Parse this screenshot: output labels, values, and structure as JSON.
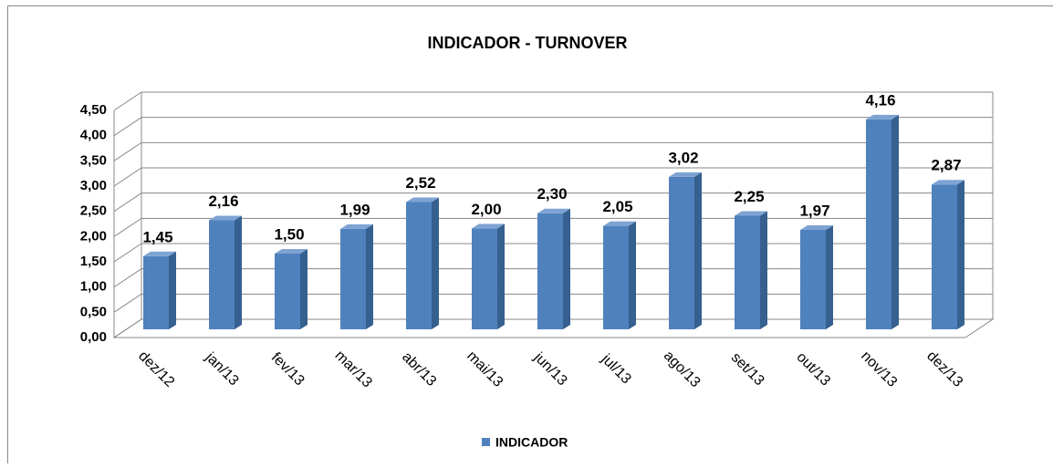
{
  "chart_data": {
    "type": "bar3d",
    "title": "INDICADOR - TURNOVER",
    "categories": [
      "dez/12",
      "jan/13",
      "fev/13",
      "mar/13",
      "abr/13",
      "mai/13",
      "jun/13",
      "jul/13",
      "ago/13",
      "set/13",
      "out/13",
      "nov/13",
      "dez/13"
    ],
    "series": [
      {
        "name": "INDICADOR",
        "color": "#4f81bd",
        "values": [
          1.45,
          2.16,
          1.5,
          1.99,
          2.52,
          2.0,
          2.3,
          2.05,
          3.02,
          2.25,
          1.97,
          4.16,
          2.87
        ],
        "value_labels": [
          "1,45",
          "2,16",
          "1,50",
          "1,99",
          "2,52",
          "2,00",
          "2,30",
          "2,05",
          "3,02",
          "2,25",
          "1,97",
          "4,16",
          "2,87"
        ]
      }
    ],
    "ylim": [
      0,
      4.5
    ],
    "yticks": [
      {
        "value": 0,
        "label": "0,00"
      },
      {
        "value": 0.5,
        "label": "0,50"
      },
      {
        "value": 1,
        "label": "1,00"
      },
      {
        "value": 1.5,
        "label": "1,50"
      },
      {
        "value": 2,
        "label": "2,00"
      },
      {
        "value": 2.5,
        "label": "2,50"
      },
      {
        "value": 3,
        "label": "3,00"
      },
      {
        "value": 3.5,
        "label": "3,50"
      },
      {
        "value": 4,
        "label": "4,00"
      },
      {
        "value": 4.5,
        "label": "4,50"
      }
    ],
    "grid": true,
    "legend": "bottom"
  }
}
